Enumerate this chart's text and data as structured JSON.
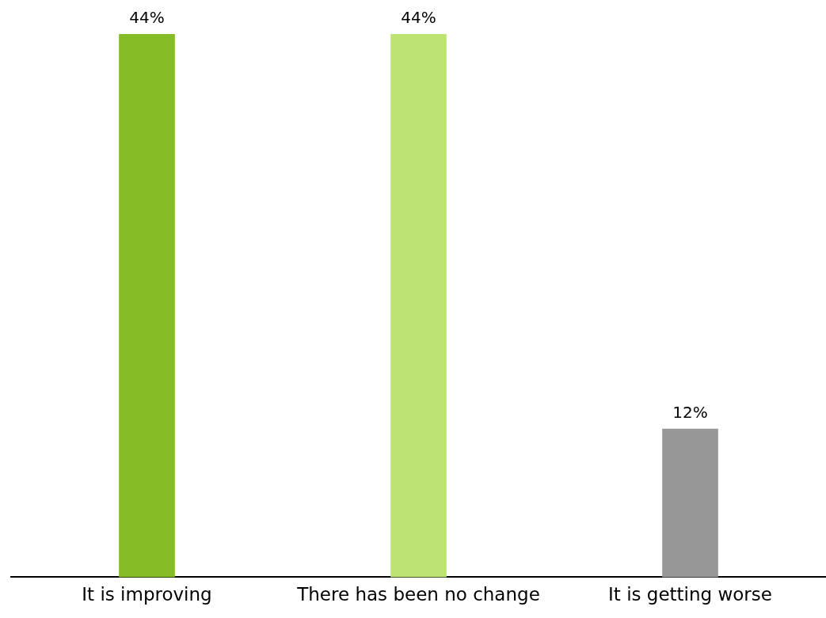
{
  "chart_data": {
    "type": "bar",
    "categories": [
      "It is improving",
      "There has been no change",
      "It is getting worse"
    ],
    "values": [
      44,
      44,
      12
    ],
    "colors": [
      "#86bc25",
      "#bde472",
      "#979797"
    ],
    "value_labels": [
      "44%",
      "44%",
      "12%"
    ]
  }
}
